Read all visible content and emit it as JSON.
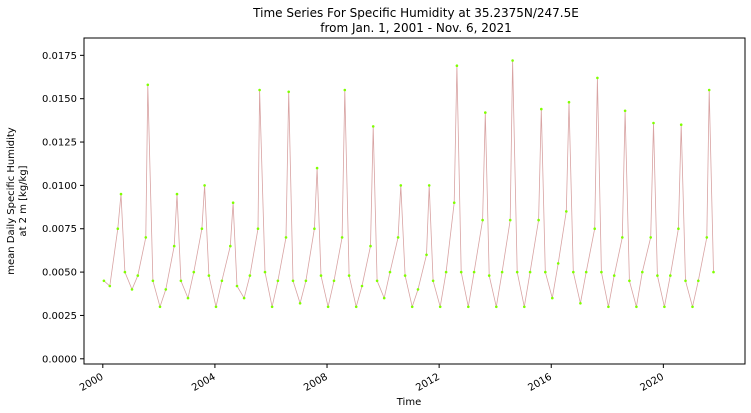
{
  "chart_data": {
    "type": "line",
    "title_line1": "Time Series For Specific Humidity at 35.2375N/247.5E",
    "title_line2": "from Jan. 1, 2001 - Nov. 6, 2021",
    "xlabel": "Time",
    "ylabel_line1": "mean Daily Specific Humidity",
    "ylabel_line2": "at 2 m [kg/kg]",
    "xlim": [
      "1999-05-01",
      "2022-11-30"
    ],
    "ylim": [
      -0.0003,
      0.0185
    ],
    "x_ticks": [
      "2000",
      "2004",
      "2008",
      "2012",
      "2016",
      "2020"
    ],
    "y_ticks": [
      "0.0000",
      "0.0025",
      "0.0050",
      "0.0075",
      "0.0100",
      "0.0125",
      "0.0150",
      "0.0175"
    ],
    "grid": false,
    "legend": "none",
    "colors": {
      "line": "#d8a3a3",
      "marker": "#7fff00"
    },
    "series": [
      {
        "marker": "dot",
        "x": [
          "2000-01-15",
          "2000-04-01",
          "2000-07-15",
          "2000-08-25",
          "2000-10-15",
          "2001-01-15",
          "2001-04-01",
          "2001-07-15",
          "2001-08-10",
          "2001-10-15",
          "2002-01-15",
          "2002-04-01",
          "2002-07-20",
          "2002-08-25",
          "2002-10-15",
          "2003-01-15",
          "2003-04-01",
          "2003-07-15",
          "2003-08-20",
          "2003-10-15",
          "2004-01-15",
          "2004-04-01",
          "2004-07-20",
          "2004-08-25",
          "2004-10-15",
          "2005-01-15",
          "2005-04-01",
          "2005-07-15",
          "2005-08-05",
          "2005-10-15",
          "2006-01-15",
          "2006-04-01",
          "2006-07-15",
          "2006-08-20",
          "2006-10-15",
          "2007-01-15",
          "2007-04-01",
          "2007-07-20",
          "2007-08-25",
          "2007-10-15",
          "2008-01-15",
          "2008-04-01",
          "2008-07-15",
          "2008-08-20",
          "2008-10-15",
          "2009-01-15",
          "2009-04-01",
          "2009-07-20",
          "2009-08-25",
          "2009-10-15",
          "2010-01-15",
          "2010-04-01",
          "2010-07-15",
          "2010-08-20",
          "2010-10-15",
          "2011-01-15",
          "2011-04-01",
          "2011-07-20",
          "2011-08-25",
          "2011-10-15",
          "2012-01-15",
          "2012-04-01",
          "2012-07-15",
          "2012-08-20",
          "2012-10-15",
          "2013-01-15",
          "2013-04-01",
          "2013-07-20",
          "2013-08-25",
          "2013-10-15",
          "2014-01-15",
          "2014-04-01",
          "2014-07-15",
          "2014-08-15",
          "2014-10-15",
          "2015-01-15",
          "2015-04-01",
          "2015-07-20",
          "2015-08-25",
          "2015-10-15",
          "2016-01-15",
          "2016-04-01",
          "2016-07-15",
          "2016-08-20",
          "2016-10-15",
          "2017-01-15",
          "2017-04-01",
          "2017-07-20",
          "2017-08-25",
          "2017-10-15",
          "2018-01-15",
          "2018-04-01",
          "2018-07-15",
          "2018-08-20",
          "2018-10-15",
          "2019-01-15",
          "2019-04-01",
          "2019-07-20",
          "2019-08-25",
          "2019-10-15",
          "2020-01-15",
          "2020-04-01",
          "2020-07-15",
          "2020-08-20",
          "2020-10-15",
          "2021-01-15",
          "2021-04-01",
          "2021-07-20",
          "2021-08-20",
          "2021-10-15"
        ],
        "y": [
          0.0045,
          0.0042,
          0.0075,
          0.0095,
          0.005,
          0.004,
          0.0048,
          0.007,
          0.0158,
          0.0045,
          0.003,
          0.004,
          0.0065,
          0.0095,
          0.0045,
          0.0035,
          0.005,
          0.0075,
          0.01,
          0.0048,
          0.003,
          0.0045,
          0.0065,
          0.009,
          0.0042,
          0.0035,
          0.0048,
          0.0075,
          0.0155,
          0.005,
          0.003,
          0.0045,
          0.007,
          0.0154,
          0.0045,
          0.0032,
          0.0045,
          0.0075,
          0.011,
          0.0048,
          0.003,
          0.0045,
          0.007,
          0.0155,
          0.0048,
          0.003,
          0.0042,
          0.0065,
          0.0134,
          0.0045,
          0.0035,
          0.005,
          0.007,
          0.01,
          0.0048,
          0.003,
          0.004,
          0.006,
          0.01,
          0.0045,
          0.003,
          0.005,
          0.009,
          0.0169,
          0.005,
          0.003,
          0.005,
          0.008,
          0.0142,
          0.0048,
          0.003,
          0.005,
          0.008,
          0.0172,
          0.005,
          0.003,
          0.005,
          0.008,
          0.0144,
          0.005,
          0.0035,
          0.0055,
          0.0085,
          0.0148,
          0.005,
          0.0032,
          0.005,
          0.0075,
          0.0162,
          0.005,
          0.003,
          0.0048,
          0.007,
          0.0143,
          0.0045,
          0.003,
          0.005,
          0.007,
          0.0136,
          0.0048,
          0.003,
          0.0048,
          0.0075,
          0.0135,
          0.0045,
          0.003,
          0.0045,
          0.007,
          0.0155,
          0.005
        ]
      }
    ]
  }
}
